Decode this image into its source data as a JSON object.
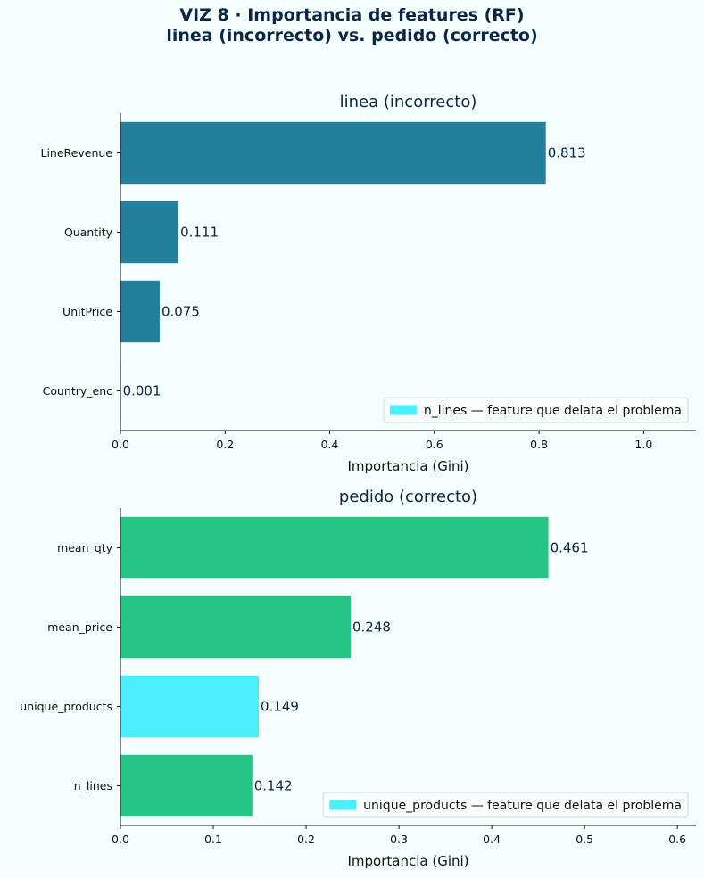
{
  "suptitle_line1": "VIZ 8 · Importancia de features (RF)",
  "suptitle_line2": "linea (incorrecto) vs. pedido (correcto)",
  "chart_data": [
    {
      "type": "bar",
      "orientation": "horizontal",
      "title": "linea (incorrecto)",
      "xlabel": "Importancia (Gini)",
      "ylabel": "",
      "xlim": [
        0,
        1.1
      ],
      "xticks": [
        "0.0",
        "0.2",
        "0.4",
        "0.6",
        "0.8",
        "1.0"
      ],
      "categories": [
        "LineRevenue",
        "Quantity",
        "UnitPrice",
        "Country_enc"
      ],
      "values": [
        0.813,
        0.111,
        0.075,
        0.001
      ],
      "value_labels": [
        "0.813",
        "0.111",
        "0.075",
        "0.001"
      ],
      "bar_color": "#23809a",
      "highlight_index": -1,
      "highlight_color": "#4aeefc",
      "legend": "n_lines — feature que delata el problema",
      "legend_position": "lower right"
    },
    {
      "type": "bar",
      "orientation": "horizontal",
      "title": "pedido (correcto)",
      "xlabel": "Importancia (Gini)",
      "ylabel": "",
      "xlim": [
        0,
        0.62
      ],
      "xticks": [
        "0.0",
        "0.1",
        "0.2",
        "0.3",
        "0.4",
        "0.5",
        "0.6"
      ],
      "categories": [
        "mean_qty",
        "mean_price",
        "unique_products",
        "n_lines"
      ],
      "values": [
        0.461,
        0.248,
        0.149,
        0.142
      ],
      "value_labels": [
        "0.461",
        "0.248",
        "0.149",
        "0.142"
      ],
      "bar_color": "#25c484",
      "highlight_index": 2,
      "highlight_color": "#4aeefc",
      "legend": "unique_products — feature que delata el problema",
      "legend_position": "lower right"
    }
  ]
}
